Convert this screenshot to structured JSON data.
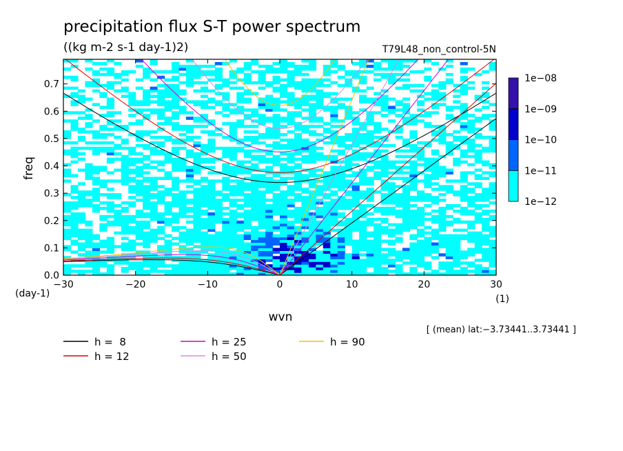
{
  "chart_data": {
    "type": "heatmap",
    "title": "precipitation flux S-T power spectrum",
    "subtitle": "((kg m-2 s-1 day-1)2)",
    "run_label": "T79L48_non_control-5N",
    "xlabel": "wvn",
    "ylabel": "freq",
    "x_unit": "(1)",
    "y_unit": "(day-1)",
    "xlim": [
      -30,
      30
    ],
    "ylim": [
      0.0,
      0.79
    ],
    "x_ticks": [
      -30,
      -20,
      -10,
      0,
      10,
      20,
      30
    ],
    "x_tick_labels": [
      "−30",
      "−20",
      "−10",
      "0",
      "10",
      "20",
      "30"
    ],
    "y_ticks": [
      0.0,
      0.1,
      0.2,
      0.3,
      0.4,
      0.5,
      0.6,
      0.7
    ],
    "y_tick_labels": [
      "0.0",
      "0.1",
      "0.2",
      "0.3",
      "0.4",
      "0.5",
      "0.6",
      "0.7"
    ],
    "annotation": "[ (mean) lat:−3.73441..3.73441 ]",
    "colorbar": {
      "levels": [
        "1e−12",
        "1e−11",
        "1e−10",
        "1e−09",
        "1e−08"
      ],
      "colors": [
        "#00ffff",
        "#0066ff",
        "#0000cc",
        "#3311aa"
      ]
    },
    "dispersion_curves": [
      {
        "label": "h =  8",
        "h": 8,
        "color": "#000000"
      },
      {
        "label": "h = 12",
        "h": 12,
        "color": "#e00000"
      },
      {
        "label": "h = 25",
        "h": 25,
        "color": "#cc00cc"
      },
      {
        "label": "h = 50",
        "h": 50,
        "color": "#dd88dd"
      },
      {
        "label": "h = 90",
        "h": 90,
        "color": "#f0c000"
      }
    ],
    "approx_power_regions": [
      {
        "level": "1e−12 to 1e−11",
        "wvn_range": [
          -30,
          30
        ],
        "freq_range": [
          0.0,
          0.75
        ]
      },
      {
        "level": "1e−11 to 1e−10",
        "wvn_range": [
          -8,
          8
        ],
        "freq_range": [
          0.0,
          0.15
        ]
      },
      {
        "level": "1e−10 to 1e−09",
        "wvn_range": [
          -3,
          6
        ],
        "freq_range": [
          0.0,
          0.12
        ]
      }
    ]
  }
}
